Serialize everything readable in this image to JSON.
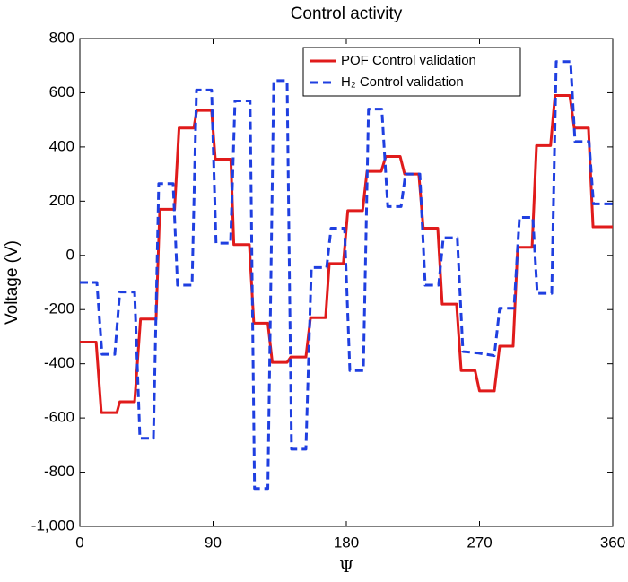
{
  "chart_data": {
    "type": "line",
    "title": "Control activity",
    "xlabel": "Ψ",
    "ylabel": "Voltage (V)",
    "xlim": [
      0,
      360
    ],
    "xticks": [
      0,
      90,
      180,
      270,
      360
    ],
    "ylim": [
      -1000,
      800
    ],
    "yticks": [
      {
        "value": -1000,
        "label": "-1,000"
      },
      -800,
      -600,
      -400,
      -200,
      0,
      200,
      400,
      600,
      800
    ],
    "legend": "upper right",
    "series": [
      {
        "name": "POF Control validation",
        "color": "#e01b1b",
        "style": "solid",
        "x": [
          0,
          11,
          14.5,
          25,
          27,
          37,
          41,
          51.5,
          54,
          64,
          67,
          77,
          79,
          89,
          91.5,
          102,
          104,
          114.5,
          117.5,
          127,
          130,
          140,
          142.5,
          152.7,
          155.8,
          166,
          168.5,
          178,
          181,
          191,
          194,
          203.6,
          206.7,
          216.4,
          219.4,
          229,
          232,
          241.8,
          244.8,
          254.5,
          257.6,
          267,
          270,
          280,
          283.6,
          292.7,
          295.8,
          305.5,
          308.5,
          318,
          321,
          331,
          334,
          343.6,
          346.7,
          360
        ],
        "values": [
          -320,
          -320,
          -580,
          -580,
          -540,
          -540,
          -235,
          -235,
          170,
          170,
          470,
          470,
          535,
          535,
          355,
          355,
          40,
          40,
          -250,
          -250,
          -395,
          -395,
          -375,
          -375,
          -230,
          -230,
          -30,
          -30,
          165,
          165,
          310,
          310,
          365,
          365,
          300,
          300,
          100,
          100,
          -180,
          -180,
          -425,
          -425,
          -500,
          -500,
          -335,
          -335,
          30,
          30,
          405,
          405,
          590,
          590,
          470,
          470,
          105,
          105
        ]
      },
      {
        "name": "H₂ Control validation",
        "color": "#1f3fe0",
        "style": "dashed",
        "x": [
          0,
          11.5,
          15,
          23.6,
          27,
          37,
          40.6,
          49.7,
          53.3,
          63,
          66,
          75.8,
          78.8,
          89,
          92,
          101.8,
          104.8,
          115,
          118,
          127,
          131,
          140,
          143,
          152.7,
          156.4,
          166.7,
          169.7,
          178.8,
          182.4,
          191.5,
          195,
          204,
          208,
          217,
          220,
          229.7,
          233.3,
          242.4,
          245.5,
          255,
          258.8,
          268.5,
          280,
          283.6,
          293.3,
          297,
          306,
          309,
          318.8,
          321.8,
          331.5,
          334.5,
          344,
          347,
          360
        ],
        "values": [
          -100,
          -100,
          -365,
          -365,
          -135,
          -135,
          -675,
          -675,
          265,
          265,
          -110,
          -110,
          610,
          610,
          45,
          45,
          570,
          570,
          -860,
          -860,
          645,
          645,
          -715,
          -715,
          -45,
          -45,
          100,
          100,
          -425,
          -425,
          540,
          540,
          180,
          180,
          300,
          300,
          -110,
          -110,
          65,
          65,
          -355,
          -360,
          -370,
          -195,
          -195,
          140,
          140,
          -140,
          -140,
          715,
          715,
          420,
          420,
          190,
          190
        ]
      }
    ]
  }
}
